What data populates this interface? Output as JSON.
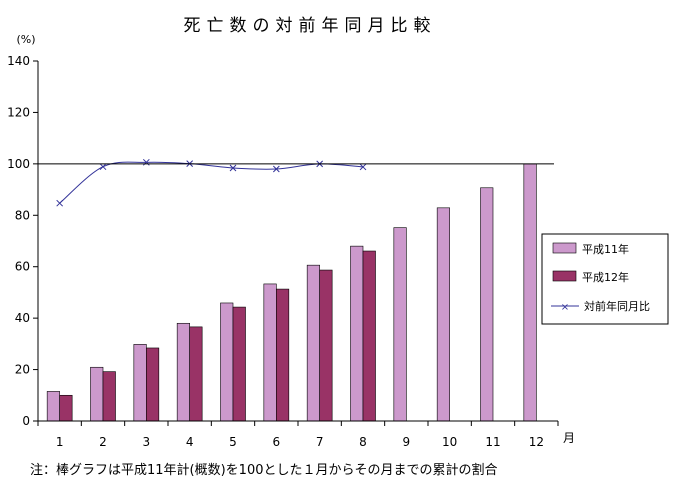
{
  "chart_data": {
    "type": "bar",
    "title": "死亡数の対前年同月比較",
    "ylabel": "(%)",
    "xlabel": "月",
    "categories": [
      "1",
      "2",
      "3",
      "4",
      "5",
      "6",
      "7",
      "8",
      "9",
      "10",
      "11",
      "12"
    ],
    "ylim": [
      0,
      140
    ],
    "yticks": [
      0,
      20,
      40,
      60,
      80,
      100,
      120,
      140
    ],
    "reference_line": 100,
    "series": [
      {
        "name": "平成11年",
        "kind": "bar",
        "color": "#cc99cc",
        "values": [
          11.5,
          20.9,
          29.8,
          38.0,
          45.9,
          53.3,
          60.6,
          68.0,
          75.2,
          82.9,
          90.7,
          100.0
        ]
      },
      {
        "name": "平成12年",
        "kind": "bar",
        "color": "#993366",
        "values": [
          10.0,
          19.2,
          28.4,
          36.6,
          44.3,
          51.3,
          58.7,
          66.1,
          null,
          null,
          null,
          null
        ]
      },
      {
        "name": "対前年同月比",
        "kind": "line",
        "color": "#333399",
        "values": [
          84.7,
          98.9,
          100.6,
          100.1,
          98.4,
          98.0,
          100.0,
          98.8,
          null,
          null,
          null,
          null
        ]
      }
    ],
    "legend_position": "right",
    "grid": false,
    "note": "注：棒グラフは平成11年計(概数)を100とした１月からその月までの累計の割合"
  }
}
